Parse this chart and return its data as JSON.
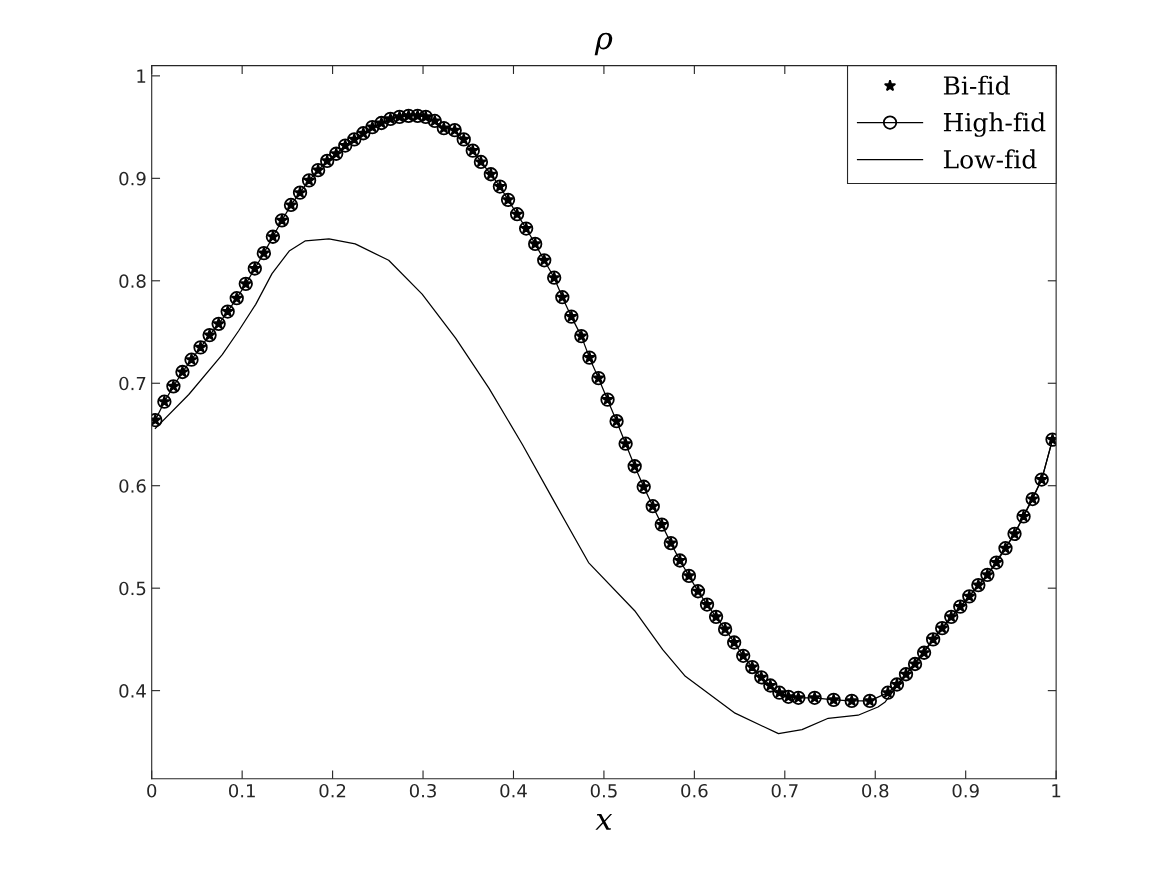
{
  "chart_data": {
    "type": "line",
    "title": "ρ",
    "xlabel": "x",
    "xlim": [
      0,
      1
    ],
    "ylim": [
      0.314,
      1.01
    ],
    "xticks": [
      0,
      0.1,
      0.2,
      0.3,
      0.4,
      0.5,
      0.6,
      0.7,
      0.8,
      0.9,
      1
    ],
    "yticks": [
      0.4,
      0.5,
      0.6,
      0.7,
      0.8,
      0.9,
      1
    ],
    "grid": false,
    "legend": "top right",
    "series": [
      {
        "name": "Bi-fid",
        "type": "scatter",
        "marker": "star",
        "color": "#000000",
        "x": [
          0.004,
          0.014,
          0.024,
          0.034,
          0.044,
          0.054,
          0.064,
          0.074,
          0.084,
          0.094,
          0.104,
          0.114,
          0.124,
          0.134,
          0.144,
          0.154,
          0.164,
          0.174,
          0.184,
          0.194,
          0.204,
          0.214,
          0.224,
          0.234,
          0.244,
          0.254,
          0.264,
          0.274,
          0.284,
          0.294,
          0.303,
          0.313,
          0.323,
          0.335,
          0.345,
          0.355,
          0.364,
          0.375,
          0.385,
          0.394,
          0.404,
          0.414,
          0.424,
          0.434,
          0.445,
          0.454,
          0.464,
          0.475,
          0.484,
          0.494,
          0.504,
          0.514,
          0.524,
          0.534,
          0.544,
          0.554,
          0.564,
          0.574,
          0.584,
          0.594,
          0.604,
          0.614,
          0.624,
          0.634,
          0.644,
          0.654,
          0.664,
          0.674,
          0.684,
          0.694,
          0.704,
          0.715,
          0.733,
          0.754,
          0.774,
          0.794,
          0.814,
          0.824,
          0.834,
          0.844,
          0.854,
          0.864,
          0.874,
          0.884,
          0.894,
          0.904,
          0.914,
          0.924,
          0.934,
          0.944,
          0.954,
          0.964,
          0.974,
          0.984,
          0.996
        ],
        "values": [
          0.664,
          0.682,
          0.697,
          0.711,
          0.723,
          0.735,
          0.747,
          0.758,
          0.77,
          0.783,
          0.797,
          0.812,
          0.827,
          0.843,
          0.859,
          0.874,
          0.886,
          0.898,
          0.908,
          0.917,
          0.924,
          0.932,
          0.938,
          0.944,
          0.95,
          0.954,
          0.958,
          0.96,
          0.961,
          0.961,
          0.96,
          0.956,
          0.949,
          0.947,
          0.938,
          0.927,
          0.916,
          0.904,
          0.892,
          0.879,
          0.865,
          0.851,
          0.836,
          0.82,
          0.803,
          0.784,
          0.765,
          0.746,
          0.725,
          0.705,
          0.684,
          0.663,
          0.641,
          0.619,
          0.599,
          0.58,
          0.562,
          0.544,
          0.527,
          0.512,
          0.497,
          0.484,
          0.472,
          0.46,
          0.447,
          0.434,
          0.423,
          0.413,
          0.405,
          0.398,
          0.394,
          0.393,
          0.393,
          0.391,
          0.39,
          0.39,
          0.398,
          0.406,
          0.416,
          0.426,
          0.437,
          0.45,
          0.461,
          0.472,
          0.482,
          0.492,
          0.503,
          0.513,
          0.525,
          0.539,
          0.553,
          0.57,
          0.587,
          0.606,
          0.645
        ]
      },
      {
        "name": "High-fid",
        "type": "line",
        "marker": "circle",
        "line_style": "solid",
        "color": "#000000",
        "x": [
          0.004,
          0.014,
          0.024,
          0.034,
          0.044,
          0.054,
          0.064,
          0.074,
          0.084,
          0.094,
          0.104,
          0.114,
          0.124,
          0.134,
          0.144,
          0.154,
          0.164,
          0.174,
          0.184,
          0.194,
          0.204,
          0.214,
          0.224,
          0.234,
          0.244,
          0.254,
          0.264,
          0.274,
          0.284,
          0.294,
          0.303,
          0.313,
          0.323,
          0.335,
          0.345,
          0.355,
          0.364,
          0.375,
          0.385,
          0.394,
          0.404,
          0.414,
          0.424,
          0.434,
          0.445,
          0.454,
          0.464,
          0.475,
          0.484,
          0.494,
          0.504,
          0.514,
          0.524,
          0.534,
          0.544,
          0.554,
          0.564,
          0.574,
          0.584,
          0.594,
          0.604,
          0.614,
          0.624,
          0.634,
          0.644,
          0.654,
          0.664,
          0.674,
          0.684,
          0.694,
          0.704,
          0.715,
          0.733,
          0.754,
          0.774,
          0.794,
          0.814,
          0.824,
          0.834,
          0.844,
          0.854,
          0.864,
          0.874,
          0.884,
          0.894,
          0.904,
          0.914,
          0.924,
          0.934,
          0.944,
          0.954,
          0.964,
          0.974,
          0.984,
          0.996
        ],
        "values": [
          0.664,
          0.682,
          0.697,
          0.711,
          0.723,
          0.735,
          0.747,
          0.758,
          0.77,
          0.783,
          0.797,
          0.812,
          0.827,
          0.843,
          0.859,
          0.874,
          0.886,
          0.898,
          0.908,
          0.917,
          0.924,
          0.932,
          0.938,
          0.944,
          0.95,
          0.954,
          0.958,
          0.96,
          0.961,
          0.961,
          0.96,
          0.956,
          0.949,
          0.947,
          0.938,
          0.927,
          0.916,
          0.904,
          0.892,
          0.879,
          0.865,
          0.851,
          0.836,
          0.82,
          0.803,
          0.784,
          0.765,
          0.746,
          0.725,
          0.705,
          0.684,
          0.663,
          0.641,
          0.619,
          0.599,
          0.58,
          0.562,
          0.544,
          0.527,
          0.512,
          0.497,
          0.484,
          0.472,
          0.46,
          0.447,
          0.434,
          0.423,
          0.413,
          0.405,
          0.398,
          0.394,
          0.393,
          0.393,
          0.391,
          0.39,
          0.39,
          0.398,
          0.406,
          0.416,
          0.426,
          0.437,
          0.45,
          0.461,
          0.472,
          0.482,
          0.492,
          0.503,
          0.513,
          0.525,
          0.539,
          0.553,
          0.57,
          0.587,
          0.606,
          0.645
        ]
      },
      {
        "name": "Low-fid",
        "type": "line",
        "marker": "none",
        "line_style": "solid",
        "color": "#000000",
        "x": [
          0.004,
          0.041,
          0.078,
          0.096,
          0.115,
          0.133,
          0.152,
          0.17,
          0.196,
          0.225,
          0.262,
          0.299,
          0.336,
          0.373,
          0.41,
          0.446,
          0.483,
          0.534,
          0.565,
          0.59,
          0.645,
          0.693,
          0.719,
          0.748,
          0.781,
          0.803,
          0.811,
          0.834,
          0.864,
          0.894,
          0.924,
          0.954,
          0.984,
          0.996
        ],
        "values": [
          0.656,
          0.689,
          0.728,
          0.751,
          0.777,
          0.807,
          0.829,
          0.839,
          0.841,
          0.836,
          0.82,
          0.787,
          0.744,
          0.695,
          0.64,
          0.583,
          0.525,
          0.478,
          0.44,
          0.414,
          0.378,
          0.358,
          0.362,
          0.373,
          0.376,
          0.384,
          0.389,
          0.416,
          0.45,
          0.482,
          0.513,
          0.553,
          0.606,
          0.645
        ]
      }
    ]
  }
}
